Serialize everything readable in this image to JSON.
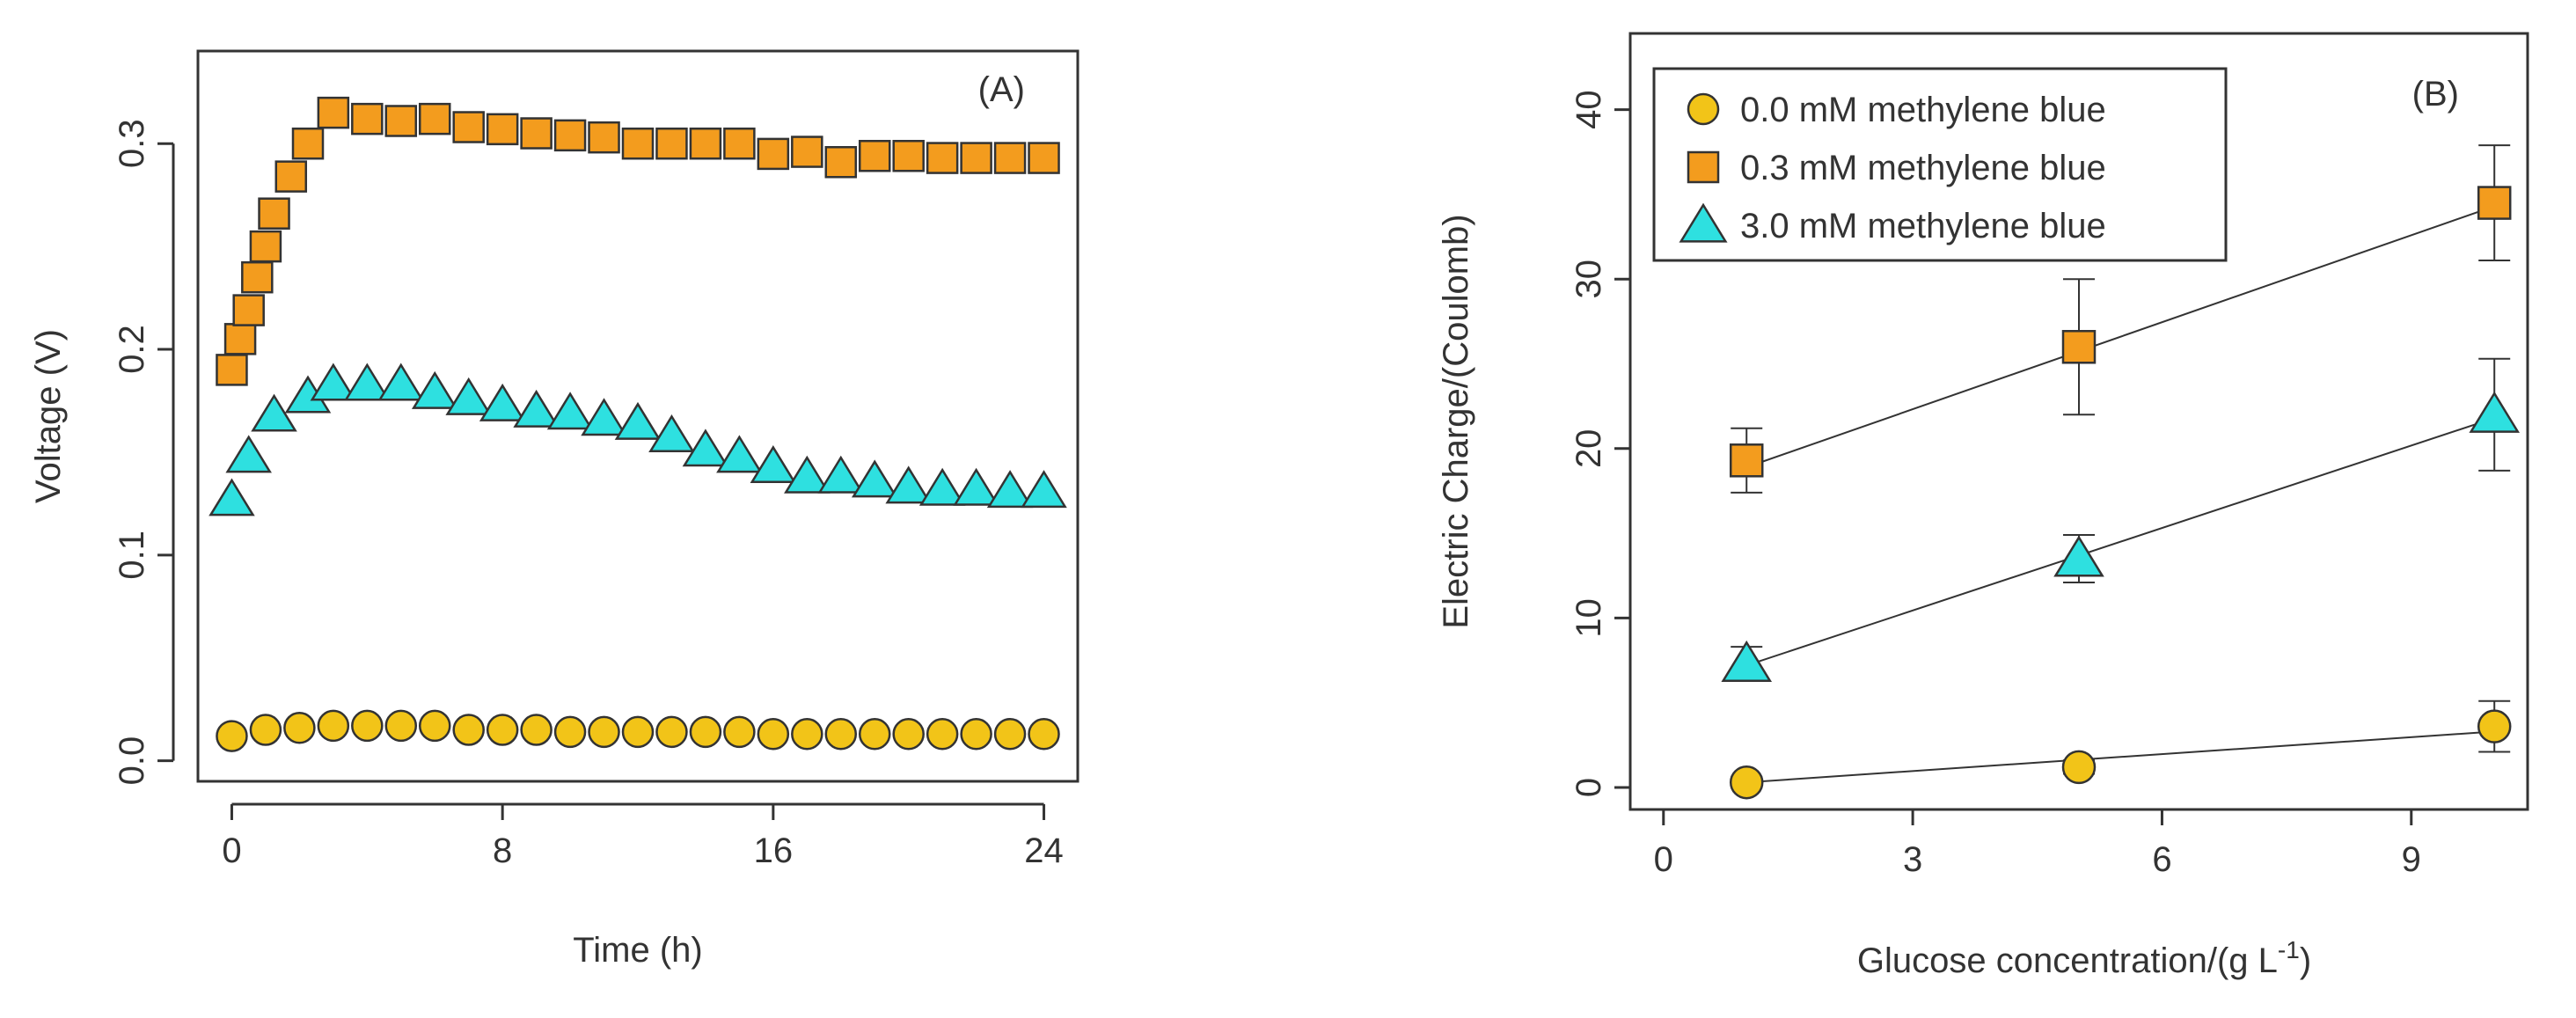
{
  "chart_data": [
    {
      "type": "scatter",
      "panel_label": "(A)",
      "xlabel": "Time (h)",
      "ylabel": "Voltage (V)",
      "xlim": [
        -1,
        25
      ],
      "ylim": [
        -0.01,
        0.345
      ],
      "xticks": [
        0,
        8,
        16,
        24
      ],
      "yticks": [
        0.0,
        0.1,
        0.2,
        0.3
      ],
      "xtick_labels": [
        "0",
        "8",
        "16",
        "24"
      ],
      "ytick_labels": [
        "0.0",
        "0.1",
        "0.2",
        "0.3"
      ],
      "grid": false,
      "series": [
        {
          "name": "0.0 mM methylene blue",
          "marker": "circle",
          "color": "#f2c418",
          "points": [
            [
              0,
              0.012
            ],
            [
              1,
              0.015
            ],
            [
              2,
              0.016
            ],
            [
              3,
              0.017
            ],
            [
              4,
              0.017
            ],
            [
              5,
              0.017
            ],
            [
              6,
              0.017
            ],
            [
              7,
              0.015
            ],
            [
              8,
              0.015
            ],
            [
              9,
              0.015
            ],
            [
              10,
              0.014
            ],
            [
              11,
              0.014
            ],
            [
              12,
              0.014
            ],
            [
              13,
              0.014
            ],
            [
              14,
              0.014
            ],
            [
              15,
              0.014
            ],
            [
              16,
              0.013
            ],
            [
              17,
              0.013
            ],
            [
              18,
              0.013
            ],
            [
              19,
              0.013
            ],
            [
              20,
              0.013
            ],
            [
              21,
              0.013
            ],
            [
              22,
              0.013
            ],
            [
              23,
              0.013
            ],
            [
              24,
              0.013
            ]
          ]
        },
        {
          "name": "0.3 mM methylene blue",
          "marker": "square",
          "color": "#f39c1e",
          "points": [
            [
              0,
              0.19
            ],
            [
              0.25,
              0.205
            ],
            [
              0.5,
              0.219
            ],
            [
              0.75,
              0.235
            ],
            [
              1,
              0.25
            ],
            [
              1.25,
              0.266
            ],
            [
              1.75,
              0.284
            ],
            [
              2.25,
              0.3
            ],
            [
              3,
              0.315
            ],
            [
              4,
              0.312
            ],
            [
              5,
              0.311
            ],
            [
              6,
              0.312
            ],
            [
              7,
              0.308
            ],
            [
              8,
              0.307
            ],
            [
              9,
              0.305
            ],
            [
              10,
              0.304
            ],
            [
              11,
              0.303
            ],
            [
              12,
              0.3
            ],
            [
              13,
              0.3
            ],
            [
              14,
              0.3
            ],
            [
              15,
              0.3
            ],
            [
              16,
              0.295
            ],
            [
              17,
              0.296
            ],
            [
              18,
              0.291
            ],
            [
              19,
              0.294
            ],
            [
              20,
              0.294
            ],
            [
              21,
              0.293
            ],
            [
              22,
              0.293
            ],
            [
              23,
              0.293
            ],
            [
              24,
              0.293
            ]
          ]
        },
        {
          "name": "3.0 mM methylene blue",
          "marker": "triangle",
          "color": "#2ee0e0",
          "points": [
            [
              0,
              0.127
            ],
            [
              0.5,
              0.148
            ],
            [
              1.25,
              0.168
            ],
            [
              2.25,
              0.177
            ],
            [
              3,
              0.183
            ],
            [
              4,
              0.183
            ],
            [
              5,
              0.183
            ],
            [
              6,
              0.179
            ],
            [
              7,
              0.176
            ],
            [
              8,
              0.173
            ],
            [
              9,
              0.17
            ],
            [
              10,
              0.169
            ],
            [
              11,
              0.166
            ],
            [
              12,
              0.164
            ],
            [
              13,
              0.158
            ],
            [
              14,
              0.151
            ],
            [
              15,
              0.148
            ],
            [
              16,
              0.143
            ],
            [
              17,
              0.138
            ],
            [
              18,
              0.138
            ],
            [
              19,
              0.136
            ],
            [
              20,
              0.133
            ],
            [
              21,
              0.132
            ],
            [
              22,
              0.132
            ],
            [
              23,
              0.131
            ],
            [
              24,
              0.131
            ]
          ]
        }
      ]
    },
    {
      "type": "scatter",
      "panel_label": "(B)",
      "xlabel": "Glucose concentration/(g L",
      "xlabel_sup": "-1",
      "xlabel_close": ")",
      "ylabel": "Electric Charge/(Coulomb)",
      "xlim": [
        -0.4,
        10.4
      ],
      "ylim": [
        -1.3,
        44.5
      ],
      "xticks": [
        0,
        3,
        6,
        9
      ],
      "yticks": [
        0,
        10,
        20,
        30,
        40
      ],
      "xtick_labels": [
        "0",
        "3",
        "6",
        "9"
      ],
      "ytick_labels": [
        "0",
        "10",
        "20",
        "30",
        "40"
      ],
      "grid": false,
      "legend_position": "top-left",
      "series": [
        {
          "name": "0.0 mM methylene blue",
          "marker": "circle",
          "color": "#f2c418",
          "x": [
            1,
            5,
            10
          ],
          "y": [
            0.3,
            1.2,
            3.6
          ],
          "err": [
            0.3,
            0.4,
            1.5
          ],
          "fit": [
            [
              1,
              0.3
            ],
            [
              10,
              3.3
            ]
          ]
        },
        {
          "name": "0.3 mM methylene blue",
          "marker": "square",
          "color": "#f39c1e",
          "x": [
            1,
            5,
            10
          ],
          "y": [
            19.3,
            26,
            34.5
          ],
          "err": [
            1.9,
            4,
            3.4
          ],
          "fit": [
            [
              1,
              18.9
            ],
            [
              10,
              34.3
            ]
          ]
        },
        {
          "name": "3.0 mM methylene blue",
          "marker": "triangle",
          "color": "#2ee0e0",
          "x": [
            1,
            5,
            10
          ],
          "y": [
            7.3,
            13.5,
            22
          ],
          "err": [
            1,
            1.4,
            3.3
          ],
          "fit": [
            [
              1,
              7.2
            ],
            [
              10,
              21.8
            ]
          ]
        }
      ]
    }
  ]
}
